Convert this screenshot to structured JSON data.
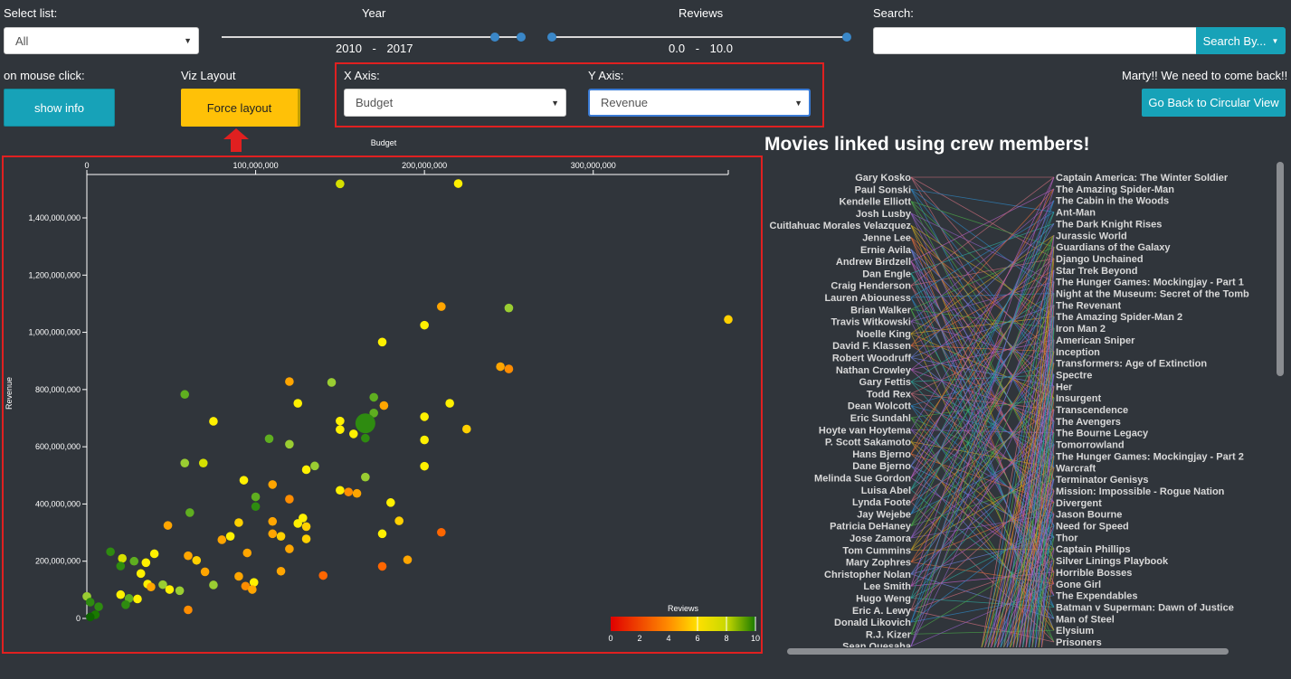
{
  "controls": {
    "select_list_label": "Select list:",
    "select_list_value": "All",
    "year_label": "Year",
    "year_from": "2010",
    "year_sep": "-",
    "year_to": "2017",
    "reviews_label": "Reviews",
    "reviews_from": "0.0",
    "reviews_sep": "-",
    "reviews_to": "10.0",
    "search_label": "Search:",
    "search_value": "",
    "search_button": "Search By...",
    "mouse_click_label": "on mouse click:",
    "show_info_button": "show info",
    "viz_layout_label": "Viz Layout",
    "force_layout_button": "Force layout",
    "x_axis_label": "X Axis:",
    "x_axis_value": "Budget",
    "y_axis_label": "Y Axis:",
    "y_axis_value": "Revenue",
    "marty_text": "Marty!! We need to come back!!",
    "circular_button": "Go Back to Circular View"
  },
  "colors": {
    "accent_teal": "#17a2b8",
    "button_yellow": "#ffc107",
    "highlight_red": "#e02020",
    "background": "#30353b"
  },
  "chart_data": {
    "type": "scatter",
    "xlabel": "Budget",
    "ylabel": "Revenue",
    "xlim": [
      0,
      380000000
    ],
    "ylim": [
      0,
      1560000000
    ],
    "x_ticks": [
      {
        "value": 0,
        "label": "0"
      },
      {
        "value": 100000000,
        "label": "100,000,000"
      },
      {
        "value": 200000000,
        "label": "200,000,000"
      },
      {
        "value": 300000000,
        "label": "300,000,000"
      }
    ],
    "y_ticks": [
      {
        "value": 0,
        "label": "0"
      },
      {
        "value": 200000000,
        "label": "200,000,000"
      },
      {
        "value": 400000000,
        "label": "400,000,000"
      },
      {
        "value": 600000000,
        "label": "600,000,000"
      },
      {
        "value": 800000000,
        "label": "800,000,000"
      },
      {
        "value": 1000000000,
        "label": "1,000,000,000"
      },
      {
        "value": 1200000000,
        "label": "1,200,000,000"
      },
      {
        "value": 1400000000,
        "label": "1,400,000,000"
      }
    ],
    "legend": {
      "title": "Reviews",
      "ticks": [
        "0",
        "2",
        "4",
        "6",
        "8",
        "10"
      ],
      "placement": "bottom-right"
    },
    "points": [
      {
        "x": 150000000,
        "y": 1519000000,
        "r": 7.2
      },
      {
        "x": 220000000,
        "y": 1520000000,
        "r": 6.8
      },
      {
        "x": 380000000,
        "y": 1045000000,
        "r": 6.3
      },
      {
        "x": 250000000,
        "y": 1085000000,
        "r": 7.8
      },
      {
        "x": 210000000,
        "y": 1090000000,
        "r": 5.6
      },
      {
        "x": 200000000,
        "y": 1025000000,
        "r": 6.6
      },
      {
        "x": 175000000,
        "y": 966000000,
        "r": 6.8
      },
      {
        "x": 245000000,
        "y": 880000000,
        "r": 5.8
      },
      {
        "x": 250000000,
        "y": 872000000,
        "r": 5.4
      },
      {
        "x": 120000000,
        "y": 828000000,
        "r": 5.8
      },
      {
        "x": 145000000,
        "y": 825000000,
        "r": 8.0
      },
      {
        "x": 58000000,
        "y": 783000000,
        "r": 8.5
      },
      {
        "x": 170000000,
        "y": 773000000,
        "r": 8.3
      },
      {
        "x": 125000000,
        "y": 752000000,
        "r": 6.6
      },
      {
        "x": 215000000,
        "y": 752000000,
        "r": 6.6
      },
      {
        "x": 176000000,
        "y": 744000000,
        "r": 5.6
      },
      {
        "x": 170000000,
        "y": 718000000,
        "r": 8.3
      },
      {
        "x": 200000000,
        "y": 705000000,
        "r": 6.6
      },
      {
        "x": 150000000,
        "y": 690000000,
        "r": 6.8
      },
      {
        "x": 75000000,
        "y": 689000000,
        "r": 7.0
      },
      {
        "x": 165000000,
        "y": 684000000,
        "r": 9.0
      },
      {
        "x": 225000000,
        "y": 662000000,
        "r": 6.2
      },
      {
        "x": 150000000,
        "y": 660000000,
        "r": 7.0
      },
      {
        "x": 158000000,
        "y": 645000000,
        "r": 6.8
      },
      {
        "x": 165000000,
        "y": 630000000,
        "r": 8.6
      },
      {
        "x": 108000000,
        "y": 628000000,
        "r": 8.2
      },
      {
        "x": 200000000,
        "y": 624000000,
        "r": 7.0
      },
      {
        "x": 120000000,
        "y": 609000000,
        "r": 7.6
      },
      {
        "x": 58000000,
        "y": 543000000,
        "r": 8.0
      },
      {
        "x": 69000000,
        "y": 543000000,
        "r": 7.3
      },
      {
        "x": 135000000,
        "y": 533000000,
        "r": 7.6
      },
      {
        "x": 130000000,
        "y": 520000000,
        "r": 7.0
      },
      {
        "x": 200000000,
        "y": 532000000,
        "r": 7.0
      },
      {
        "x": 165000000,
        "y": 494000000,
        "r": 8.0
      },
      {
        "x": 93000000,
        "y": 483000000,
        "r": 7.0
      },
      {
        "x": 110000000,
        "y": 468000000,
        "r": 5.6
      },
      {
        "x": 150000000,
        "y": 448000000,
        "r": 6.8
      },
      {
        "x": 155000000,
        "y": 442000000,
        "r": 5.4
      },
      {
        "x": 160000000,
        "y": 437000000,
        "r": 5.8
      },
      {
        "x": 100000000,
        "y": 425000000,
        "r": 8.2
      },
      {
        "x": 120000000,
        "y": 417000000,
        "r": 5.4
      },
      {
        "x": 180000000,
        "y": 405000000,
        "r": 7.0
      },
      {
        "x": 100000000,
        "y": 391000000,
        "r": 8.6
      },
      {
        "x": 61000000,
        "y": 370000000,
        "r": 8.4
      },
      {
        "x": 110000000,
        "y": 339000000,
        "r": 6.0
      },
      {
        "x": 90000000,
        "y": 335000000,
        "r": 6.2
      },
      {
        "x": 128000000,
        "y": 351000000,
        "r": 6.6
      },
      {
        "x": 125000000,
        "y": 332000000,
        "r": 6.8
      },
      {
        "x": 185000000,
        "y": 341000000,
        "r": 6.4
      },
      {
        "x": 48000000,
        "y": 325000000,
        "r": 5.6
      },
      {
        "x": 130000000,
        "y": 321000000,
        "r": 6.4
      },
      {
        "x": 210000000,
        "y": 301000000,
        "r": 4.8
      },
      {
        "x": 110000000,
        "y": 296000000,
        "r": 6.0
      },
      {
        "x": 175000000,
        "y": 296000000,
        "r": 6.6
      },
      {
        "x": 115000000,
        "y": 287000000,
        "r": 6.4
      },
      {
        "x": 85000000,
        "y": 287000000,
        "r": 6.6
      },
      {
        "x": 130000000,
        "y": 278000000,
        "r": 6.2
      },
      {
        "x": 80000000,
        "y": 275000000,
        "r": 5.8
      },
      {
        "x": 120000000,
        "y": 243000000,
        "r": 5.8
      },
      {
        "x": 95000000,
        "y": 229000000,
        "r": 5.8
      },
      {
        "x": 14000000,
        "y": 233000000,
        "r": 8.6
      },
      {
        "x": 60000000,
        "y": 219000000,
        "r": 6.0
      },
      {
        "x": 40000000,
        "y": 226000000,
        "r": 7.0
      },
      {
        "x": 21000000,
        "y": 210000000,
        "r": 7.3
      },
      {
        "x": 65000000,
        "y": 203000000,
        "r": 6.2
      },
      {
        "x": 190000000,
        "y": 205000000,
        "r": 5.8
      },
      {
        "x": 28000000,
        "y": 200000000,
        "r": 8.3
      },
      {
        "x": 35000000,
        "y": 195000000,
        "r": 7.0
      },
      {
        "x": 20000000,
        "y": 183000000,
        "r": 8.6
      },
      {
        "x": 175000000,
        "y": 182000000,
        "r": 4.8
      },
      {
        "x": 70000000,
        "y": 163000000,
        "r": 6.0
      },
      {
        "x": 115000000,
        "y": 165000000,
        "r": 6.0
      },
      {
        "x": 32000000,
        "y": 157000000,
        "r": 7.0
      },
      {
        "x": 140000000,
        "y": 150000000,
        "r": 5.0
      },
      {
        "x": 90000000,
        "y": 147000000,
        "r": 5.8
      },
      {
        "x": 99000000,
        "y": 126000000,
        "r": 6.8
      },
      {
        "x": 36000000,
        "y": 120000000,
        "r": 6.6
      },
      {
        "x": 45000000,
        "y": 118000000,
        "r": 8.0
      },
      {
        "x": 75000000,
        "y": 117000000,
        "r": 7.6
      },
      {
        "x": 94000000,
        "y": 113000000,
        "r": 5.4
      },
      {
        "x": 38000000,
        "y": 110000000,
        "r": 6.0
      },
      {
        "x": 98000000,
        "y": 101000000,
        "r": 5.6
      },
      {
        "x": 49000000,
        "y": 101000000,
        "r": 7.0
      },
      {
        "x": 55000000,
        "y": 97000000,
        "r": 8.0
      },
      {
        "x": 20000000,
        "y": 83000000,
        "r": 7.0
      },
      {
        "x": 0,
        "y": 77000000,
        "r": 7.6
      },
      {
        "x": 30000000,
        "y": 68000000,
        "r": 7.0
      },
      {
        "x": 25000000,
        "y": 70000000,
        "r": 8.3
      },
      {
        "x": 2000000,
        "y": 57000000,
        "r": 8.6
      },
      {
        "x": 23000000,
        "y": 48000000,
        "r": 8.6
      },
      {
        "x": 7000000,
        "y": 41000000,
        "r": 8.6
      },
      {
        "x": 60000000,
        "y": 30000000,
        "r": 5.4
      },
      {
        "x": 5000000,
        "y": 13000000,
        "r": 9.2
      },
      {
        "x": 2000000,
        "y": 5000000,
        "r": 9.8
      },
      {
        "x": 165000000,
        "y": 682000000,
        "r": 8.9
      }
    ]
  },
  "parallel": {
    "title": "Movies linked using crew members!",
    "crew": [
      "Gary Kosko",
      "Paul Sonski",
      "Kendelle Elliott",
      "Josh Lusby",
      "Cuitlahuac Morales Velazquez",
      "Jenne Lee",
      "Ernie Avila",
      "Andrew Birdzell",
      "Dan Engle",
      "Craig Henderson",
      "Lauren Abiouness",
      "Brian Walker",
      "Travis Witkowski",
      "Noelle King",
      "David F. Klassen",
      "Robert Woodruff",
      "Nathan Crowley",
      "Gary Fettis",
      "Todd Rex",
      "Dean Wolcott",
      "Eric Sundahl",
      "Hoyte van Hoytema",
      "P. Scott Sakamoto",
      "Hans Bjerno",
      "Dane Bjerno",
      "Melinda Sue Gordon",
      "Luisa Abel",
      "Lynda Foote",
      "Jay Wejebe",
      "Patricia DeHaney",
      "Jose Zamora",
      "Tom Cummins",
      "Mary Zophres",
      "Christopher Nolan",
      "Lee Smith",
      "Hugo Weng",
      "Eric A. Lewy",
      "Donald Likovich",
      "R.J. Kizer",
      "Sean Quesaha"
    ],
    "movies": [
      "Captain America: The Winter Soldier",
      "The Amazing Spider-Man",
      "The Cabin in the Woods",
      "Ant-Man",
      "The Dark Knight Rises",
      "Jurassic World",
      "Guardians of the Galaxy",
      "Django Unchained",
      "Star Trek Beyond",
      "The Hunger Games: Mockingjay - Part 1",
      "Night at the Museum: Secret of the Tomb",
      "The Revenant",
      "The Amazing Spider-Man 2",
      "Iron Man 2",
      "American Sniper",
      "Inception",
      "Transformers: Age of Extinction",
      "Spectre",
      "Her",
      "Insurgent",
      "Transcendence",
      "The Avengers",
      "The Bourne Legacy",
      "Tomorrowland",
      "The Hunger Games: Mockingjay - Part 2",
      "Warcraft",
      "Terminator Genisys",
      "Mission: Impossible - Rogue Nation",
      "Divergent",
      "Jason Bourne",
      "Need for Speed",
      "Thor",
      "Captain Phillips",
      "Silver Linings Playbook",
      "Horrible Bosses",
      "Gone Girl",
      "The Expendables",
      "Batman v Superman: Dawn of Justice",
      "Man of Steel",
      "Elysium",
      "Prisoners"
    ]
  }
}
